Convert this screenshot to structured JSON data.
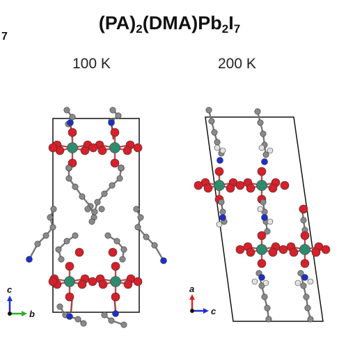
{
  "title": {
    "text": "(PA)2(DMA)Pb2I7",
    "parts": [
      {
        "t": "(PA)",
        "sub": false
      },
      {
        "t": "2",
        "sub": true
      },
      {
        "t": "(DMA)Pb",
        "sub": false
      },
      {
        "t": "2",
        "sub": true
      },
      {
        "t": "I",
        "sub": false
      },
      {
        "t": "7",
        "sub": true
      }
    ],
    "edge_fragment": "7"
  },
  "panels": [
    {
      "temperature": "100 K",
      "axes": {
        "vertical": "c",
        "horizontal": "b"
      }
    },
    {
      "temperature": "200 K",
      "axes": {
        "vertical": "a",
        "horizontal": "c"
      }
    }
  ],
  "colors": {
    "pb": "#2e8b6e",
    "iodine": "#d6202a",
    "nitrogen": "#1c30c8",
    "carbon": "#8a8a8a",
    "hydrogen": "#e2e2e2",
    "axis_red": "#e0201c",
    "axis_green": "#28b028",
    "axis_blue": "#1c30d8"
  }
}
